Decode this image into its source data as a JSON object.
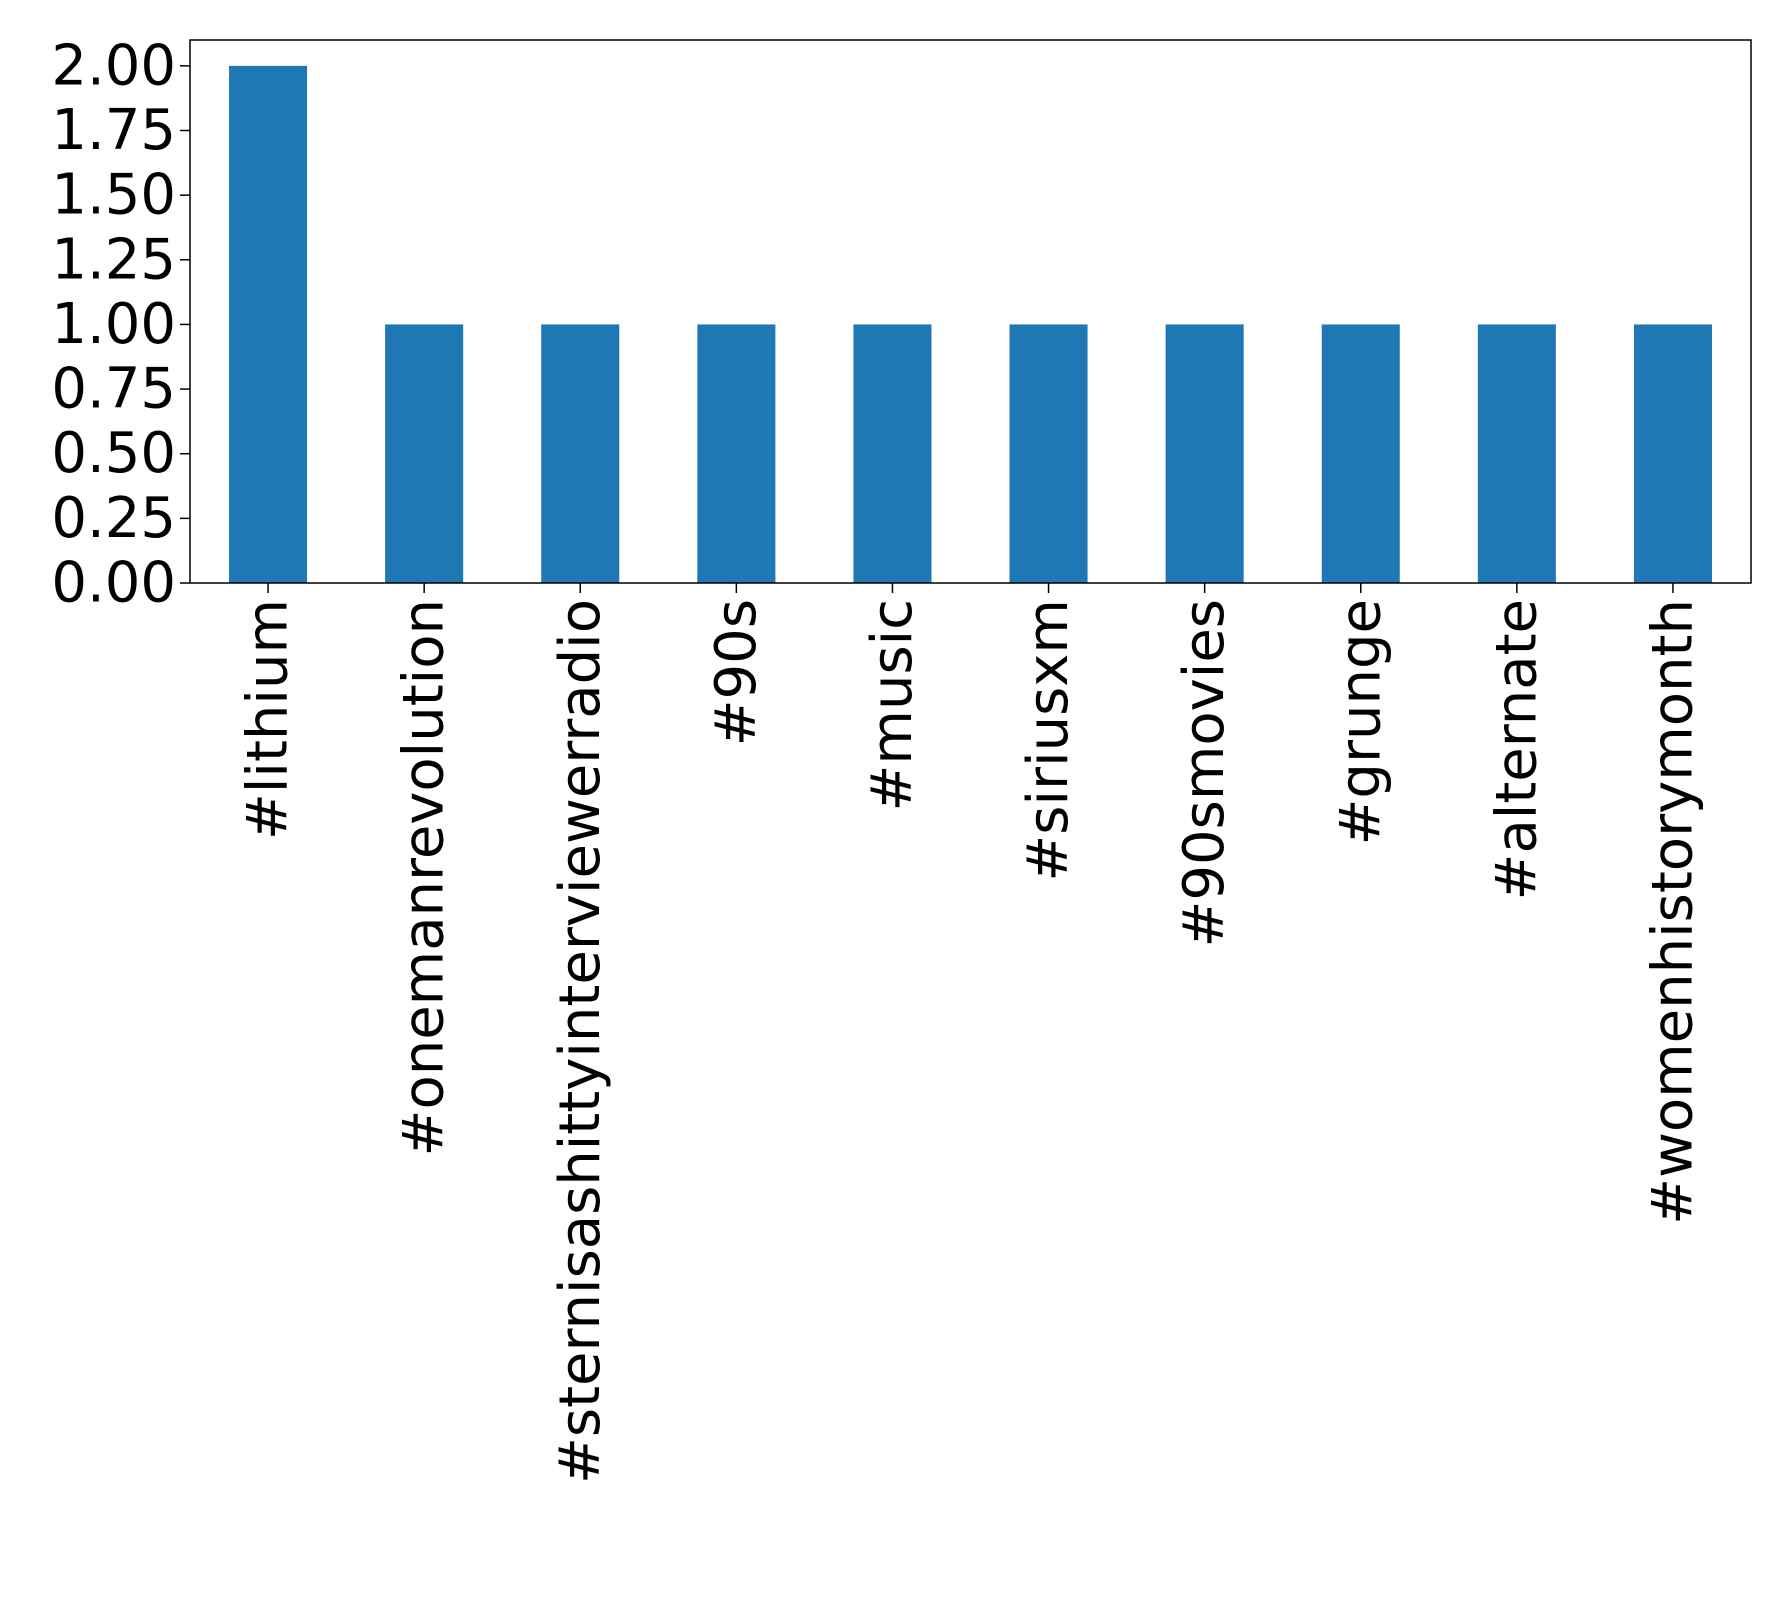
{
  "chart_data": {
    "type": "bar",
    "title": "",
    "xlabel": "",
    "ylabel": "",
    "categories": [
      "#lithium",
      "#onemanrevolution",
      "#sternisashittyinterviewerradio",
      "#90s",
      "#music",
      "#siriusxm",
      "#90smovies",
      "#grunge",
      "#alternate",
      "#womenhistorymonth"
    ],
    "values": [
      2,
      1,
      1,
      1,
      1,
      1,
      1,
      1,
      1,
      1
    ],
    "ylim": [
      0,
      2.1
    ],
    "yticks": [
      0,
      0.25,
      0.5,
      0.75,
      1.0,
      1.25,
      1.5,
      1.75,
      2.0
    ],
    "ytick_labels": [
      "0.00",
      "0.25",
      "0.50",
      "0.75",
      "1.00",
      "1.25",
      "1.50",
      "1.75",
      "2.00"
    ],
    "bar_color": "#1f77b4",
    "grid": false,
    "legend": "none"
  }
}
